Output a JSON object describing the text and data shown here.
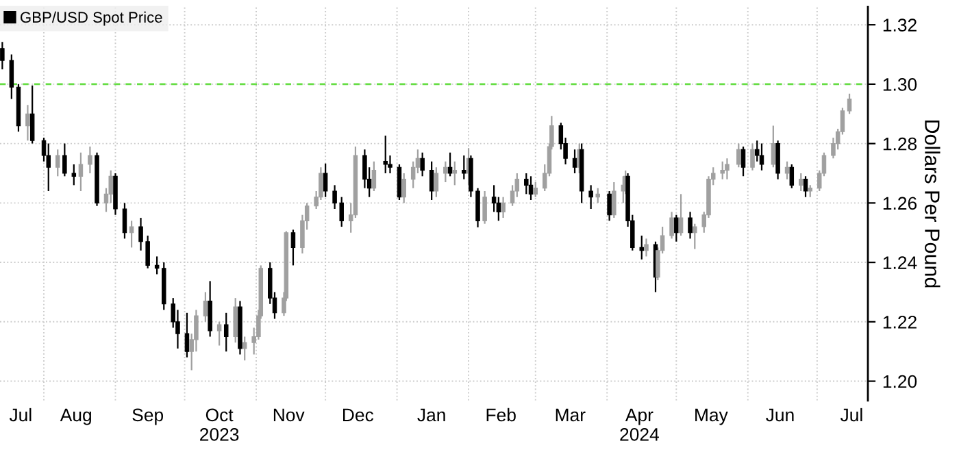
{
  "chart_data": {
    "type": "candlestick",
    "ylabel": "Dollars Per Pound",
    "xlim": [
      "2023-07-13",
      "2024-07-23"
    ],
    "ylim": [
      1.1935,
      1.326
    ],
    "yticks": [
      {
        "value": 1.2,
        "label": "1.20"
      },
      1.22,
      1.24,
      1.26,
      1.28,
      {
        "value": 1.3,
        "label": "1.30"
      },
      1.32
    ],
    "xticks": [
      {
        "value": "2023-07-22",
        "label": "Jul"
      },
      {
        "value": "2023-08-01",
        "label": null
      },
      {
        "value": "2023-08-15",
        "label": "Aug"
      },
      {
        "value": "2023-09-01",
        "label": null
      },
      {
        "value": "2023-09-15",
        "label": "Sep"
      },
      {
        "value": "2023-10-01",
        "label": null
      },
      {
        "value": "2023-10-16",
        "label": "Oct\n2023"
      },
      {
        "value": "2023-11-01",
        "label": null
      },
      {
        "value": "2023-11-15",
        "label": "Nov"
      },
      {
        "value": "2023-12-01",
        "label": null
      },
      {
        "value": "2023-12-15",
        "label": "Dec"
      },
      {
        "value": "2024-01-01",
        "label": null
      },
      {
        "value": "2024-01-16",
        "label": "Jan"
      },
      {
        "value": "2024-02-01",
        "label": null
      },
      {
        "value": "2024-02-15",
        "label": "Feb"
      },
      {
        "value": "2024-03-01",
        "label": null
      },
      {
        "value": "2024-03-16",
        "label": "Mar"
      },
      {
        "value": "2024-04-01",
        "label": null
      },
      {
        "value": "2024-04-15",
        "label": "Apr\n2024"
      },
      {
        "value": "2024-05-01",
        "label": null
      },
      {
        "value": "2024-05-16",
        "label": "May"
      },
      {
        "value": "2024-06-01",
        "label": null
      },
      {
        "value": "2024-06-15",
        "label": "Jun"
      },
      {
        "value": "2024-07-01",
        "label": null
      },
      {
        "value": "2024-07-16",
        "label": "Jul"
      }
    ],
    "grid": true,
    "legend": "top left",
    "ref_lines": [
      {
        "axis": "y",
        "value": 1.3,
        "color": "#66dd44",
        "line_style": "dashed"
      }
    ],
    "series": [
      {
        "name": "GBP/USD Spot Price",
        "color": "#000000",
        "x": [
          "2023-07-14",
          "2023-07-18",
          "2023-07-21",
          "2023-07-25",
          "2023-07-27",
          "2023-08-01",
          "2023-08-03",
          "2023-08-07",
          "2023-08-10",
          "2023-08-14",
          "2023-08-17",
          "2023-08-21",
          "2023-08-24",
          "2023-08-28",
          "2023-08-30",
          "2023-09-01",
          "2023-09-05",
          "2023-09-08",
          "2023-09-12",
          "2023-09-15",
          "2023-09-19",
          "2023-09-22",
          "2023-09-26",
          "2023-09-28",
          "2023-10-02",
          "2023-10-04",
          "2023-10-06",
          "2023-10-10",
          "2023-10-12",
          "2023-10-16",
          "2023-10-19",
          "2023-10-23",
          "2023-10-25",
          "2023-10-27",
          "2023-10-31",
          "2023-11-02",
          "2023-11-03",
          "2023-11-07",
          "2023-11-09",
          "2023-11-13",
          "2023-11-14",
          "2023-11-17",
          "2023-11-21",
          "2023-11-23",
          "2023-11-27",
          "2023-11-29",
          "2023-12-01",
          "2023-12-05",
          "2023-12-08",
          "2023-12-12",
          "2023-12-14",
          "2023-12-18",
          "2023-12-20",
          "2023-12-22",
          "2023-12-27",
          "2023-12-29",
          "2024-01-02",
          "2024-01-04",
          "2024-01-08",
          "2024-01-10",
          "2024-01-12",
          "2024-01-16",
          "2024-01-18",
          "2024-01-22",
          "2024-01-24",
          "2024-01-26",
          "2024-01-30",
          "2024-02-01",
          "2024-02-02",
          "2024-02-05",
          "2024-02-08",
          "2024-02-12",
          "2024-02-14",
          "2024-02-16",
          "2024-02-20",
          "2024-02-22",
          "2024-02-26",
          "2024-02-28",
          "2024-03-01",
          "2024-03-05",
          "2024-03-07",
          "2024-03-08",
          "2024-03-12",
          "2024-03-14",
          "2024-03-18",
          "2024-03-20",
          "2024-03-21",
          "2024-03-25",
          "2024-03-28",
          "2024-04-02",
          "2024-04-04",
          "2024-04-08",
          "2024-04-09",
          "2024-04-10",
          "2024-04-12",
          "2024-04-16",
          "2024-04-18",
          "2024-04-22",
          "2024-04-23",
          "2024-04-25",
          "2024-04-29",
          "2024-05-01",
          "2024-05-03",
          "2024-05-07",
          "2024-05-09",
          "2024-05-13",
          "2024-05-15",
          "2024-05-17",
          "2024-05-21",
          "2024-05-23",
          "2024-05-28",
          "2024-05-30",
          "2024-06-03",
          "2024-06-05",
          "2024-06-07",
          "2024-06-12",
          "2024-06-14",
          "2024-06-18",
          "2024-06-20",
          "2024-06-24",
          "2024-06-26",
          "2024-06-28",
          "2024-07-02",
          "2024-07-04",
          "2024-07-08",
          "2024-07-10",
          "2024-07-12",
          "2024-07-15"
        ],
        "ohlc": [
          [
            1.312,
            1.3142,
            1.305,
            1.308
          ],
          [
            1.308,
            1.31,
            1.295,
            1.299
          ],
          [
            1.299,
            1.3,
            1.284,
            1.286
          ],
          [
            1.286,
            1.293,
            1.281,
            1.29
          ],
          [
            1.29,
            1.2996,
            1.28,
            1.281
          ],
          [
            1.281,
            1.282,
            1.274,
            1.276
          ],
          [
            1.276,
            1.28,
            1.264,
            1.272
          ],
          [
            1.272,
            1.278,
            1.269,
            1.276
          ],
          [
            1.276,
            1.28,
            1.269,
            1.27
          ],
          [
            1.27,
            1.273,
            1.266,
            1.269
          ],
          [
            1.269,
            1.277,
            1.264,
            1.273
          ],
          [
            1.273,
            1.279,
            1.27,
            1.276
          ],
          [
            1.276,
            1.277,
            1.259,
            1.26
          ],
          [
            1.26,
            1.265,
            1.257,
            1.263
          ],
          [
            1.263,
            1.271,
            1.26,
            1.269
          ],
          [
            1.269,
            1.27,
            1.256,
            1.258
          ],
          [
            1.258,
            1.26,
            1.248,
            1.25
          ],
          [
            1.25,
            1.254,
            1.245,
            1.252
          ],
          [
            1.252,
            1.255,
            1.244,
            1.247
          ],
          [
            1.247,
            1.249,
            1.238,
            1.239
          ],
          [
            1.239,
            1.242,
            1.236,
            1.238
          ],
          [
            1.238,
            1.24,
            1.224,
            1.226
          ],
          [
            1.226,
            1.228,
            1.218,
            1.22
          ],
          [
            1.22,
            1.224,
            1.211,
            1.216
          ],
          [
            1.216,
            1.223,
            1.208,
            1.21
          ],
          [
            1.21,
            1.216,
            1.2037,
            1.214
          ],
          [
            1.214,
            1.224,
            1.21,
            1.222
          ],
          [
            1.222,
            1.23,
            1.22,
            1.227
          ],
          [
            1.227,
            1.2337,
            1.215,
            1.217
          ],
          [
            1.217,
            1.22,
            1.212,
            1.219
          ],
          [
            1.219,
            1.223,
            1.21,
            1.215
          ],
          [
            1.215,
            1.228,
            1.213,
            1.225
          ],
          [
            1.225,
            1.227,
            1.209,
            1.211
          ],
          [
            1.211,
            1.215,
            1.207,
            1.213
          ],
          [
            1.213,
            1.218,
            1.209,
            1.215
          ],
          [
            1.215,
            1.224,
            1.214,
            1.222
          ],
          [
            1.222,
            1.239,
            1.221,
            1.238
          ],
          [
            1.238,
            1.24,
            1.226,
            1.228
          ],
          [
            1.228,
            1.23,
            1.221,
            1.223
          ],
          [
            1.223,
            1.23,
            1.222,
            1.228
          ],
          [
            1.228,
            1.2505,
            1.227,
            1.25
          ],
          [
            1.25,
            1.251,
            1.239,
            1.245
          ],
          [
            1.245,
            1.256,
            1.243,
            1.254
          ],
          [
            1.254,
            1.26,
            1.251,
            1.259
          ],
          [
            1.259,
            1.264,
            1.258,
            1.262
          ],
          [
            1.262,
            1.272,
            1.261,
            1.27
          ],
          [
            1.27,
            1.2733,
            1.262,
            1.264
          ],
          [
            1.264,
            1.266,
            1.258,
            1.26
          ],
          [
            1.26,
            1.262,
            1.252,
            1.254
          ],
          [
            1.254,
            1.26,
            1.25,
            1.256
          ],
          [
            1.256,
            1.279,
            1.255,
            1.276
          ],
          [
            1.276,
            1.278,
            1.265,
            1.268
          ],
          [
            1.268,
            1.272,
            1.262,
            1.265
          ],
          [
            1.265,
            1.274,
            1.264,
            1.271
          ],
          [
            1.274,
            1.2827,
            1.27,
            1.273
          ],
          [
            1.273,
            1.276,
            1.27,
            1.272
          ],
          [
            1.272,
            1.273,
            1.261,
            1.262
          ],
          [
            1.262,
            1.27,
            1.26,
            1.268
          ],
          [
            1.268,
            1.274,
            1.265,
            1.272
          ],
          [
            1.272,
            1.278,
            1.27,
            1.275
          ],
          [
            1.275,
            1.277,
            1.269,
            1.271
          ],
          [
            1.271,
            1.274,
            1.261,
            1.264
          ],
          [
            1.264,
            1.272,
            1.262,
            1.27
          ],
          [
            1.27,
            1.274,
            1.267,
            1.272
          ],
          [
            1.272,
            1.277,
            1.269,
            1.27
          ],
          [
            1.27,
            1.274,
            1.266,
            1.271
          ],
          [
            1.271,
            1.276,
            1.268,
            1.27
          ],
          [
            1.27,
            1.2785,
            1.266,
            1.275
          ],
          [
            1.275,
            1.276,
            1.262,
            1.264
          ],
          [
            1.264,
            1.265,
            1.2518,
            1.254
          ],
          [
            1.254,
            1.264,
            1.253,
            1.262
          ],
          [
            1.262,
            1.266,
            1.257,
            1.26
          ],
          [
            1.26,
            1.262,
            1.254,
            1.257
          ],
          [
            1.257,
            1.262,
            1.255,
            1.26
          ],
          [
            1.26,
            1.266,
            1.259,
            1.264
          ],
          [
            1.264,
            1.27,
            1.262,
            1.268
          ],
          [
            1.268,
            1.27,
            1.263,
            1.266
          ],
          [
            1.266,
            1.269,
            1.261,
            1.263
          ],
          [
            1.263,
            1.267,
            1.262,
            1.265
          ],
          [
            1.265,
            1.273,
            1.264,
            1.27
          ],
          [
            1.27,
            1.28,
            1.269,
            1.279
          ],
          [
            1.279,
            1.2893,
            1.278,
            1.286
          ],
          [
            1.286,
            1.287,
            1.278,
            1.28
          ],
          [
            1.28,
            1.282,
            1.273,
            1.275
          ],
          [
            1.275,
            1.278,
            1.27,
            1.272
          ],
          [
            1.272,
            1.28,
            1.27,
            1.278
          ],
          [
            1.278,
            1.28,
            1.26,
            1.264
          ],
          [
            1.264,
            1.266,
            1.258,
            1.262
          ],
          [
            1.262,
            1.265,
            1.26,
            1.263
          ],
          [
            1.263,
            1.264,
            1.254,
            1.256
          ],
          [
            1.256,
            1.267,
            1.255,
            1.264
          ],
          [
            1.264,
            1.269,
            1.26,
            1.266
          ],
          [
            1.266,
            1.2709,
            1.263,
            1.269
          ],
          [
            1.269,
            1.27,
            1.252,
            1.254
          ],
          [
            1.254,
            1.256,
            1.244,
            1.245
          ],
          [
            1.245,
            1.249,
            1.241,
            1.244
          ],
          [
            1.244,
            1.248,
            1.242,
            1.246
          ],
          [
            1.246,
            1.247,
            1.23,
            1.235
          ],
          [
            1.235,
            1.245,
            1.234,
            1.244
          ],
          [
            1.244,
            1.252,
            1.243,
            1.249
          ],
          [
            1.249,
            1.257,
            1.248,
            1.255
          ],
          [
            1.255,
            1.256,
            1.247,
            1.25
          ],
          [
            1.25,
            1.263,
            1.249,
            1.255
          ],
          [
            1.255,
            1.257,
            1.248,
            1.25
          ],
          [
            1.25,
            1.253,
            1.2445,
            1.252
          ],
          [
            1.252,
            1.257,
            1.25,
            1.256
          ],
          [
            1.256,
            1.269,
            1.255,
            1.268
          ],
          [
            1.268,
            1.272,
            1.266,
            1.27
          ],
          [
            1.27,
            1.274,
            1.268,
            1.271
          ],
          [
            1.271,
            1.275,
            1.268,
            1.273
          ],
          [
            1.273,
            1.28,
            1.272,
            1.278
          ],
          [
            1.278,
            1.279,
            1.269,
            1.272
          ],
          [
            1.272,
            1.28,
            1.271,
            1.278
          ],
          [
            1.278,
            1.281,
            1.274,
            1.276
          ],
          [
            1.276,
            1.28,
            1.271,
            1.273
          ],
          [
            1.273,
            1.286,
            1.272,
            1.28
          ],
          [
            1.28,
            1.281,
            1.268,
            1.27
          ],
          [
            1.27,
            1.274,
            1.268,
            1.272
          ],
          [
            1.272,
            1.273,
            1.265,
            1.266
          ],
          [
            1.266,
            1.27,
            1.264,
            1.268
          ],
          [
            1.268,
            1.269,
            1.262,
            1.264
          ],
          [
            1.264,
            1.266,
            1.262,
            1.265
          ],
          [
            1.265,
            1.271,
            1.264,
            1.27
          ],
          [
            1.27,
            1.277,
            1.269,
            1.276
          ],
          [
            1.276,
            1.282,
            1.275,
            1.28
          ],
          [
            1.28,
            1.285,
            1.278,
            1.284
          ],
          [
            1.284,
            1.292,
            1.283,
            1.291
          ],
          [
            1.291,
            1.2968,
            1.29,
            1.295
          ]
        ],
        "colors": [
          "#000000",
          "#000000",
          "#000000",
          "#a0a0a0",
          "#000000",
          "#000000",
          "#000000",
          "#a0a0a0",
          "#000000",
          "#000000",
          "#a0a0a0",
          "#a0a0a0",
          "#000000",
          "#a0a0a0",
          "#a0a0a0",
          "#000000",
          "#000000",
          "#a0a0a0",
          "#000000",
          "#000000",
          "#000000",
          "#000000",
          "#000000",
          "#000000",
          "#000000",
          "#a0a0a0",
          "#a0a0a0",
          "#a0a0a0",
          "#000000",
          "#a0a0a0",
          "#000000",
          "#a0a0a0",
          "#000000",
          "#a0a0a0",
          "#a0a0a0",
          "#a0a0a0",
          "#a0a0a0",
          "#000000",
          "#000000",
          "#a0a0a0",
          "#a0a0a0",
          "#000000",
          "#a0a0a0",
          "#a0a0a0",
          "#a0a0a0",
          "#a0a0a0",
          "#000000",
          "#000000",
          "#000000",
          "#a0a0a0",
          "#a0a0a0",
          "#000000",
          "#000000",
          "#a0a0a0",
          "#000000",
          "#000000",
          "#000000",
          "#a0a0a0",
          "#a0a0a0",
          "#a0a0a0",
          "#000000",
          "#000000",
          "#a0a0a0",
          "#a0a0a0",
          "#000000",
          "#a0a0a0",
          "#000000",
          "#a0a0a0",
          "#000000",
          "#000000",
          "#a0a0a0",
          "#000000",
          "#000000",
          "#a0a0a0",
          "#a0a0a0",
          "#a0a0a0",
          "#000000",
          "#000000",
          "#a0a0a0",
          "#a0a0a0",
          "#a0a0a0",
          "#a0a0a0",
          "#000000",
          "#000000",
          "#000000",
          "#a0a0a0",
          "#000000",
          "#000000",
          "#a0a0a0",
          "#000000",
          "#a0a0a0",
          "#a0a0a0",
          "#a0a0a0",
          "#000000",
          "#000000",
          "#000000",
          "#a0a0a0",
          "#000000",
          "#a0a0a0",
          "#a0a0a0",
          "#a0a0a0",
          "#000000",
          "#a0a0a0",
          "#000000",
          "#a0a0a0",
          "#a0a0a0",
          "#a0a0a0",
          "#a0a0a0",
          "#a0a0a0",
          "#a0a0a0",
          "#a0a0a0",
          "#000000",
          "#a0a0a0",
          "#000000",
          "#000000",
          "#a0a0a0",
          "#000000",
          "#a0a0a0",
          "#000000",
          "#a0a0a0",
          "#000000",
          "#a0a0a0",
          "#a0a0a0",
          "#a0a0a0",
          "#a0a0a0",
          "#a0a0a0",
          "#a0a0a0",
          "#a0a0a0"
        ]
      }
    ]
  }
}
